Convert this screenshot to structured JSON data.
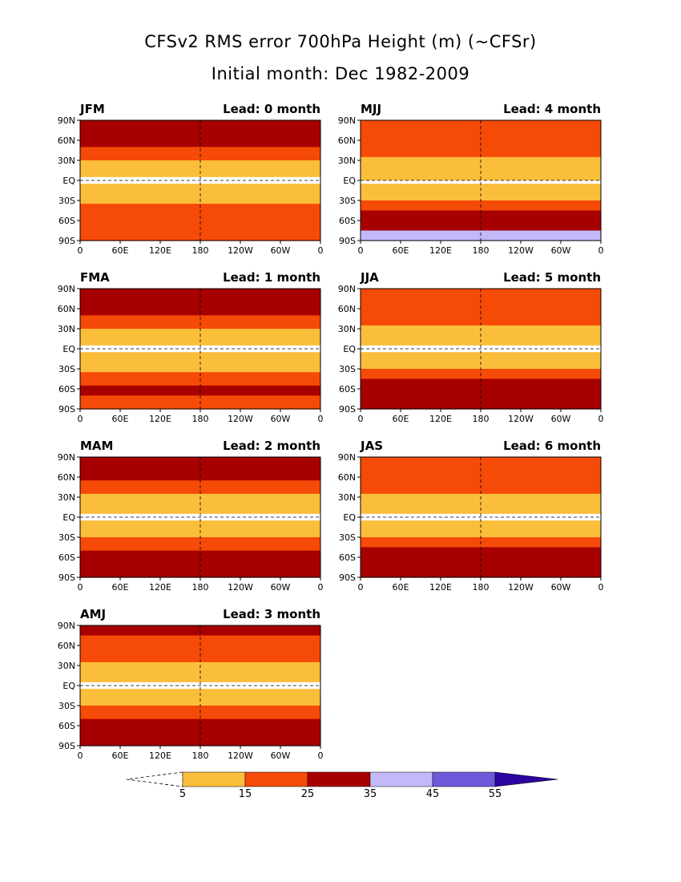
{
  "title": "CFSv2 RMS error 700hPa Height (m) (~CFSr)",
  "subtitle": "Initial month: Dec 1982-2009",
  "colors": {
    "bin_5_15": "#fbbe3a",
    "bin_15_25": "#f64a08",
    "bin_25_35": "#a70000",
    "bin_35_45": "#c3b8f8",
    "bin_45_55": "#6c5adb",
    "bin_55_plus": "#2c02a0",
    "below_5": "#ffffff"
  },
  "chart_data": [
    {
      "type": "heatmap",
      "season": "JFM",
      "lead": "Lead: 0 month",
      "lead_months": 0,
      "xticks": [
        "0",
        "60E",
        "120E",
        "180",
        "120W",
        "60W",
        "0"
      ],
      "yticks": [
        "90N",
        "60N",
        "30N",
        "EQ",
        "30S",
        "60S",
        "90S"
      ],
      "zonal_rms_profile_m": [
        {
          "lat": 80,
          "rms": 30
        },
        {
          "lat": 60,
          "rms": 28
        },
        {
          "lat": 40,
          "rms": 20
        },
        {
          "lat": 20,
          "rms": 10
        },
        {
          "lat": 0,
          "rms": 4
        },
        {
          "lat": -20,
          "rms": 8
        },
        {
          "lat": -40,
          "rms": 18
        },
        {
          "lat": -60,
          "rms": 24
        },
        {
          "lat": -80,
          "rms": 22
        }
      ]
    },
    {
      "type": "heatmap",
      "season": "FMA",
      "lead": "Lead: 1 month",
      "lead_months": 1,
      "xticks": [
        "0",
        "60E",
        "120E",
        "180",
        "120W",
        "60W",
        "0"
      ],
      "yticks": [
        "90N",
        "60N",
        "30N",
        "EQ",
        "30S",
        "60S",
        "90S"
      ],
      "zonal_rms_profile_m": [
        {
          "lat": 80,
          "rms": 32
        },
        {
          "lat": 60,
          "rms": 30
        },
        {
          "lat": 40,
          "rms": 20
        },
        {
          "lat": 20,
          "rms": 10
        },
        {
          "lat": 0,
          "rms": 4
        },
        {
          "lat": -20,
          "rms": 8
        },
        {
          "lat": -40,
          "rms": 18
        },
        {
          "lat": -60,
          "rms": 26
        },
        {
          "lat": -80,
          "rms": 24
        }
      ]
    },
    {
      "type": "heatmap",
      "season": "MAM",
      "lead": "Lead: 2 month",
      "lead_months": 2,
      "xticks": [
        "0",
        "60E",
        "120E",
        "180",
        "120W",
        "60W",
        "0"
      ],
      "yticks": [
        "90N",
        "60N",
        "30N",
        "EQ",
        "30S",
        "60S",
        "90S"
      ],
      "zonal_rms_profile_m": [
        {
          "lat": 80,
          "rms": 30
        },
        {
          "lat": 60,
          "rms": 26
        },
        {
          "lat": 40,
          "rms": 18
        },
        {
          "lat": 20,
          "rms": 9
        },
        {
          "lat": 0,
          "rms": 4
        },
        {
          "lat": -20,
          "rms": 9
        },
        {
          "lat": -40,
          "rms": 20
        },
        {
          "lat": -60,
          "rms": 28
        },
        {
          "lat": -80,
          "rms": 26
        }
      ]
    },
    {
      "type": "heatmap",
      "season": "AMJ",
      "lead": "Lead: 3 month",
      "lead_months": 3,
      "xticks": [
        "0",
        "60E",
        "120E",
        "180",
        "120W",
        "60W",
        "0"
      ],
      "yticks": [
        "90N",
        "60N",
        "30N",
        "EQ",
        "30S",
        "60S",
        "90S"
      ],
      "zonal_rms_profile_m": [
        {
          "lat": 80,
          "rms": 26
        },
        {
          "lat": 60,
          "rms": 22
        },
        {
          "lat": 40,
          "rms": 16
        },
        {
          "lat": 20,
          "rms": 9
        },
        {
          "lat": 0,
          "rms": 4
        },
        {
          "lat": -20,
          "rms": 10
        },
        {
          "lat": -40,
          "rms": 20
        },
        {
          "lat": -60,
          "rms": 30
        },
        {
          "lat": -80,
          "rms": 28
        }
      ]
    },
    {
      "type": "heatmap",
      "season": "MJJ",
      "lead": "Lead: 4 month",
      "lead_months": 4,
      "xticks": [
        "0",
        "60E",
        "120E",
        "180",
        "120W",
        "60W",
        "0"
      ],
      "yticks": [
        "90N",
        "60N",
        "30N",
        "EQ",
        "30S",
        "60S",
        "90S"
      ],
      "zonal_rms_profile_m": [
        {
          "lat": 80,
          "rms": 24
        },
        {
          "lat": 60,
          "rms": 20
        },
        {
          "lat": 40,
          "rms": 16
        },
        {
          "lat": 20,
          "rms": 12
        },
        {
          "lat": 0,
          "rms": 4
        },
        {
          "lat": -20,
          "rms": 10
        },
        {
          "lat": -40,
          "rms": 22
        },
        {
          "lat": -60,
          "rms": 32
        },
        {
          "lat": -80,
          "rms": 36
        }
      ]
    },
    {
      "type": "heatmap",
      "season": "JJA",
      "lead": "Lead: 5 month",
      "lead_months": 5,
      "xticks": [
        "0",
        "60E",
        "120E",
        "180",
        "120W",
        "60W",
        "0"
      ],
      "yticks": [
        "90N",
        "60N",
        "30N",
        "EQ",
        "30S",
        "60S",
        "90S"
      ],
      "zonal_rms_profile_m": [
        {
          "lat": 80,
          "rms": 24
        },
        {
          "lat": 60,
          "rms": 20
        },
        {
          "lat": 40,
          "rms": 16
        },
        {
          "lat": 20,
          "rms": 10
        },
        {
          "lat": 0,
          "rms": 4
        },
        {
          "lat": -20,
          "rms": 10
        },
        {
          "lat": -40,
          "rms": 22
        },
        {
          "lat": -60,
          "rms": 32
        },
        {
          "lat": -80,
          "rms": 34
        }
      ]
    },
    {
      "type": "heatmap",
      "season": "JAS",
      "lead": "Lead: 6 month",
      "lead_months": 6,
      "xticks": [
        "0",
        "60E",
        "120E",
        "180",
        "120W",
        "60W",
        "0"
      ],
      "yticks": [
        "90N",
        "60N",
        "30N",
        "EQ",
        "30S",
        "60S",
        "90S"
      ],
      "zonal_rms_profile_m": [
        {
          "lat": 80,
          "rms": 24
        },
        {
          "lat": 60,
          "rms": 20
        },
        {
          "lat": 40,
          "rms": 16
        },
        {
          "lat": 20,
          "rms": 10
        },
        {
          "lat": 0,
          "rms": 4
        },
        {
          "lat": -20,
          "rms": 10
        },
        {
          "lat": -40,
          "rms": 22
        },
        {
          "lat": -60,
          "rms": 32
        },
        {
          "lat": -80,
          "rms": 34
        }
      ]
    }
  ],
  "colorbar": {
    "levels": [
      "5",
      "15",
      "25",
      "35",
      "45",
      "55"
    ],
    "bins": [
      {
        "from": 5,
        "to": 15,
        "color": "#fbbe3a"
      },
      {
        "from": 15,
        "to": 25,
        "color": "#f64a08"
      },
      {
        "from": 25,
        "to": 35,
        "color": "#a70000"
      },
      {
        "from": 35,
        "to": 45,
        "color": "#c3b8f8"
      },
      {
        "from": 45,
        "to": 55,
        "color": "#6c5adb"
      },
      {
        "from": 55,
        "to": null,
        "color": "#2c02a0"
      }
    ]
  }
}
